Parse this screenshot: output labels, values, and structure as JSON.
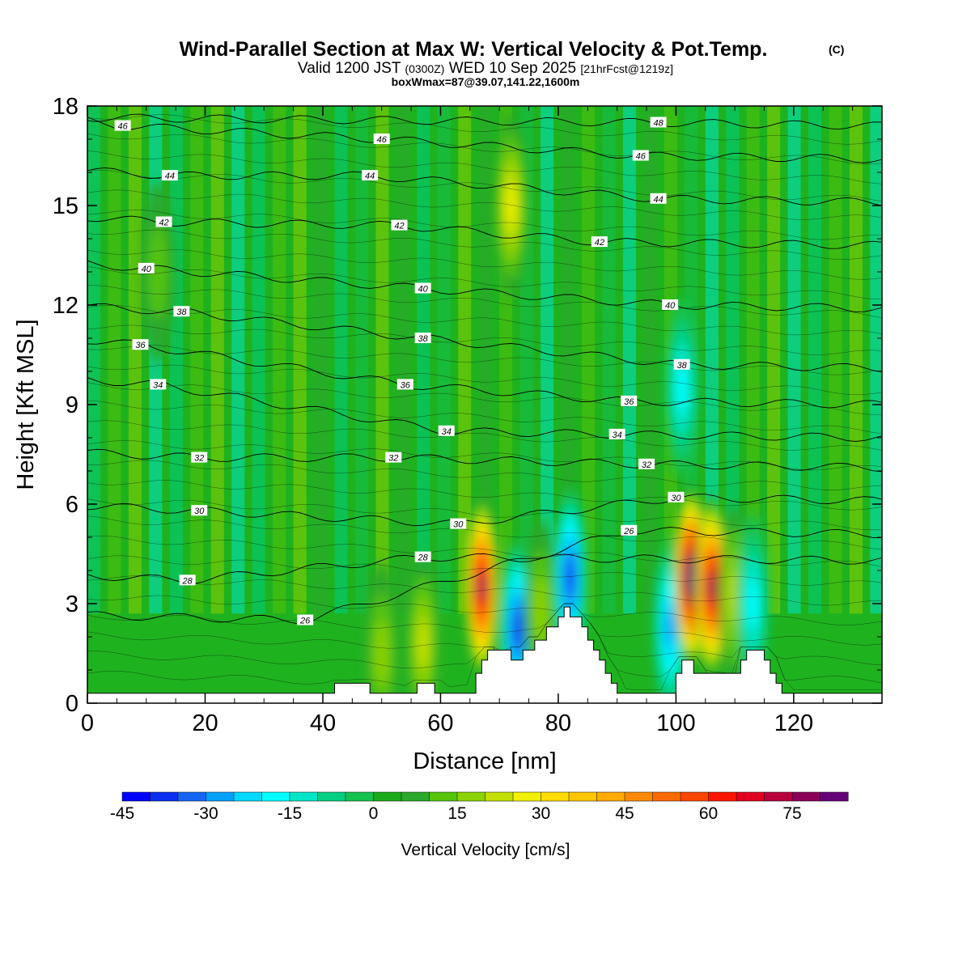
{
  "title": "Wind-Parallel Section at Max W: Vertical Velocity & Pot.Temp.",
  "title_mark": "(C)",
  "subtitle": {
    "prefix": "Valid 1200 JST",
    "utc": "(0300Z)",
    "date": "WED 10 Sep 2025",
    "forecast": "[21hrFcst@1219z]"
  },
  "box_info": "boxWmax=87@39.07,141.22,1600m",
  "chart_data": {
    "type": "heatmap",
    "xlabel": "Distance [nm]",
    "ylabel": "Height [Kft MSL]",
    "xlim": [
      0,
      135
    ],
    "ylim": [
      0,
      18
    ],
    "xticks": [
      0,
      20,
      40,
      60,
      80,
      100,
      120
    ],
    "yticks": [
      0,
      3,
      6,
      9,
      12,
      15,
      18
    ],
    "colorbar": {
      "label": "Vertical Velocity [cm/s]",
      "min": -45,
      "step": 5,
      "tick_labels": [
        "-45",
        "-30",
        "-15",
        "0",
        "15",
        "30",
        "45",
        "60",
        "75"
      ],
      "tick_values": [
        -45,
        -30,
        -15,
        0,
        15,
        30,
        45,
        60,
        75
      ],
      "colors": [
        "#0000ff",
        "#0a2ff0",
        "#1565f5",
        "#00a0ff",
        "#00d8ff",
        "#00ffff",
        "#00e6c8",
        "#00d080",
        "#14c250",
        "#1aaa1a",
        "#2ca82c",
        "#55c40a",
        "#8cd200",
        "#c4e000",
        "#f0f000",
        "#ffdc00",
        "#ffc400",
        "#ffaa00",
        "#ff8a00",
        "#ff6a00",
        "#ff4600",
        "#ff1400",
        "#e00020",
        "#b8003c",
        "#8c0058",
        "#640078"
      ]
    },
    "theta_contours": [
      {
        "label": "26",
        "x": 37,
        "y": 2.5
      },
      {
        "label": "28",
        "x": 17,
        "y": 3.7
      },
      {
        "label": "28",
        "x": 57,
        "y": 4.4
      },
      {
        "label": "26",
        "x": 92,
        "y": 5.2
      },
      {
        "label": "30",
        "x": 19,
        "y": 5.8
      },
      {
        "label": "30",
        "x": 63,
        "y": 5.4
      },
      {
        "label": "30",
        "x": 100,
        "y": 6.2
      },
      {
        "label": "32",
        "x": 19,
        "y": 7.4
      },
      {
        "label": "32",
        "x": 52,
        "y": 7.4
      },
      {
        "label": "32",
        "x": 95,
        "y": 7.2
      },
      {
        "label": "34",
        "x": 12,
        "y": 9.6
      },
      {
        "label": "34",
        "x": 61,
        "y": 8.2
      },
      {
        "label": "34",
        "x": 90,
        "y": 8.1
      },
      {
        "label": "36",
        "x": 9,
        "y": 10.8
      },
      {
        "label": "36",
        "x": 54,
        "y": 9.6
      },
      {
        "label": "36",
        "x": 92,
        "y": 9.1
      },
      {
        "label": "38",
        "x": 16,
        "y": 11.8
      },
      {
        "label": "38",
        "x": 57,
        "y": 11.0
      },
      {
        "label": "38",
        "x": 101,
        "y": 10.2
      },
      {
        "label": "40",
        "x": 10,
        "y": 13.1
      },
      {
        "label": "40",
        "x": 57,
        "y": 12.5
      },
      {
        "label": "40",
        "x": 99,
        "y": 12.0
      },
      {
        "label": "42",
        "x": 13,
        "y": 14.5
      },
      {
        "label": "42",
        "x": 53,
        "y": 14.4
      },
      {
        "label": "42",
        "x": 87,
        "y": 13.9
      },
      {
        "label": "44",
        "x": 14,
        "y": 15.9
      },
      {
        "label": "44",
        "x": 48,
        "y": 15.9
      },
      {
        "label": "44",
        "x": 97,
        "y": 15.2
      },
      {
        "label": "46",
        "x": 6,
        "y": 17.4
      },
      {
        "label": "46",
        "x": 50,
        "y": 17.0
      },
      {
        "label": "46",
        "x": 94,
        "y": 16.5
      },
      {
        "label": "48",
        "x": 97,
        "y": 17.5
      }
    ],
    "terrain": {
      "x": [
        0,
        42,
        42,
        48,
        48,
        56,
        56,
        59,
        59,
        66,
        66,
        67,
        67,
        68,
        68,
        72,
        72,
        74,
        74,
        76,
        76,
        77,
        77,
        78,
        78,
        80,
        80,
        81,
        81,
        82,
        82,
        84,
        84,
        85,
        85,
        86,
        86,
        87,
        87,
        88,
        88,
        89,
        89,
        90,
        90,
        91,
        91,
        92,
        92,
        100,
        100,
        101,
        101,
        103,
        103,
        105,
        105,
        111,
        111,
        112,
        112,
        113,
        113,
        115,
        115,
        116,
        116,
        117,
        117,
        118,
        118,
        120,
        120,
        135
      ],
      "y": [
        0.3,
        0.3,
        0.6,
        0.6,
        0.3,
        0.3,
        0.6,
        0.6,
        0.3,
        0.3,
        0.9,
        0.9,
        1.3,
        1.3,
        1.6,
        1.6,
        1.3,
        1.3,
        1.6,
        1.6,
        1.9,
        1.9,
        1.9,
        1.9,
        2.3,
        2.3,
        2.6,
        2.6,
        2.9,
        2.9,
        2.6,
        2.6,
        2.3,
        2.3,
        1.9,
        1.9,
        1.6,
        1.6,
        1.3,
        1.3,
        0.9,
        0.9,
        0.6,
        0.6,
        0.3,
        0.3,
        0.3,
        0.3,
        0.3,
        0.3,
        0.9,
        0.9,
        1.3,
        1.3,
        0.9,
        0.9,
        0.9,
        0.9,
        1.3,
        1.3,
        1.6,
        1.6,
        1.6,
        1.6,
        1.3,
        1.3,
        0.9,
        0.9,
        0.6,
        0.6,
        0.3,
        0.3,
        0.3,
        0.3
      ]
    },
    "w_features": [
      {
        "x": 67,
        "y": 3.5,
        "w": 75
      },
      {
        "x": 73,
        "y": 2.2,
        "w": -38
      },
      {
        "x": 77,
        "y": 2.8,
        "w": 12
      },
      {
        "x": 82,
        "y": 3.8,
        "w": -40
      },
      {
        "x": 99,
        "y": 2.3,
        "w": -28
      },
      {
        "x": 102.5,
        "y": 3.8,
        "w": 86
      },
      {
        "x": 106,
        "y": 3.5,
        "w": 72
      },
      {
        "x": 110,
        "y": 3.2,
        "w": 18
      },
      {
        "x": 113,
        "y": 3.0,
        "w": -18
      },
      {
        "x": 72,
        "y": 15,
        "w": 22
      },
      {
        "x": 101,
        "y": 9.5,
        "w": -20
      },
      {
        "x": 57,
        "y": 1.8,
        "w": 18
      },
      {
        "x": 50,
        "y": 1.5,
        "w": 14
      },
      {
        "x": 12,
        "y": 13,
        "w": 8
      }
    ]
  }
}
